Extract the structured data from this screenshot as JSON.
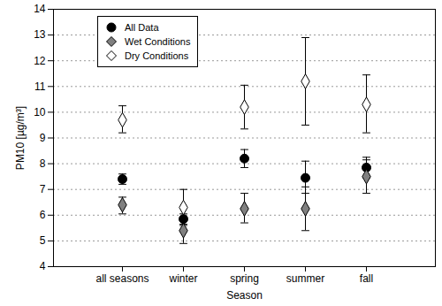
{
  "chart_data": {
    "type": "scatter",
    "x_label": "Season",
    "y_label": "PM10 [µg/m³]",
    "categories": [
      "all seasons",
      "winter",
      "spring",
      "summer",
      "fall"
    ],
    "series": [
      {
        "name": "All Data",
        "color": "#000000",
        "marker": "circle",
        "values": [
          7.4,
          5.85,
          8.2,
          7.45,
          7.85
        ],
        "error_low": [
          7.2,
          5.65,
          7.85,
          6.85,
          7.45
        ],
        "error_high": [
          7.6,
          6.05,
          8.55,
          8.1,
          8.25
        ]
      },
      {
        "name": "Wet Conditions",
        "color": "#808080",
        "marker": "diamond",
        "values": [
          6.4,
          5.4,
          6.25,
          6.25,
          7.5
        ],
        "error_low": [
          6.05,
          4.9,
          5.7,
          5.4,
          6.85
        ],
        "error_high": [
          6.7,
          5.85,
          6.85,
          7.1,
          8.15
        ]
      },
      {
        "name": "Dry Conditions",
        "color": "#ffffff",
        "marker": "diamond",
        "values": [
          9.7,
          6.3,
          10.2,
          11.2,
          10.3
        ],
        "error_low": [
          9.2,
          5.6,
          9.35,
          9.5,
          9.2
        ],
        "error_high": [
          10.25,
          7.0,
          11.05,
          12.9,
          11.45
        ]
      }
    ],
    "ylim": [
      4,
      14
    ],
    "yticks": [
      4,
      5,
      6,
      7,
      8,
      9,
      10,
      11,
      12,
      13,
      14
    ],
    "grid": true,
    "legend": "upper left"
  }
}
